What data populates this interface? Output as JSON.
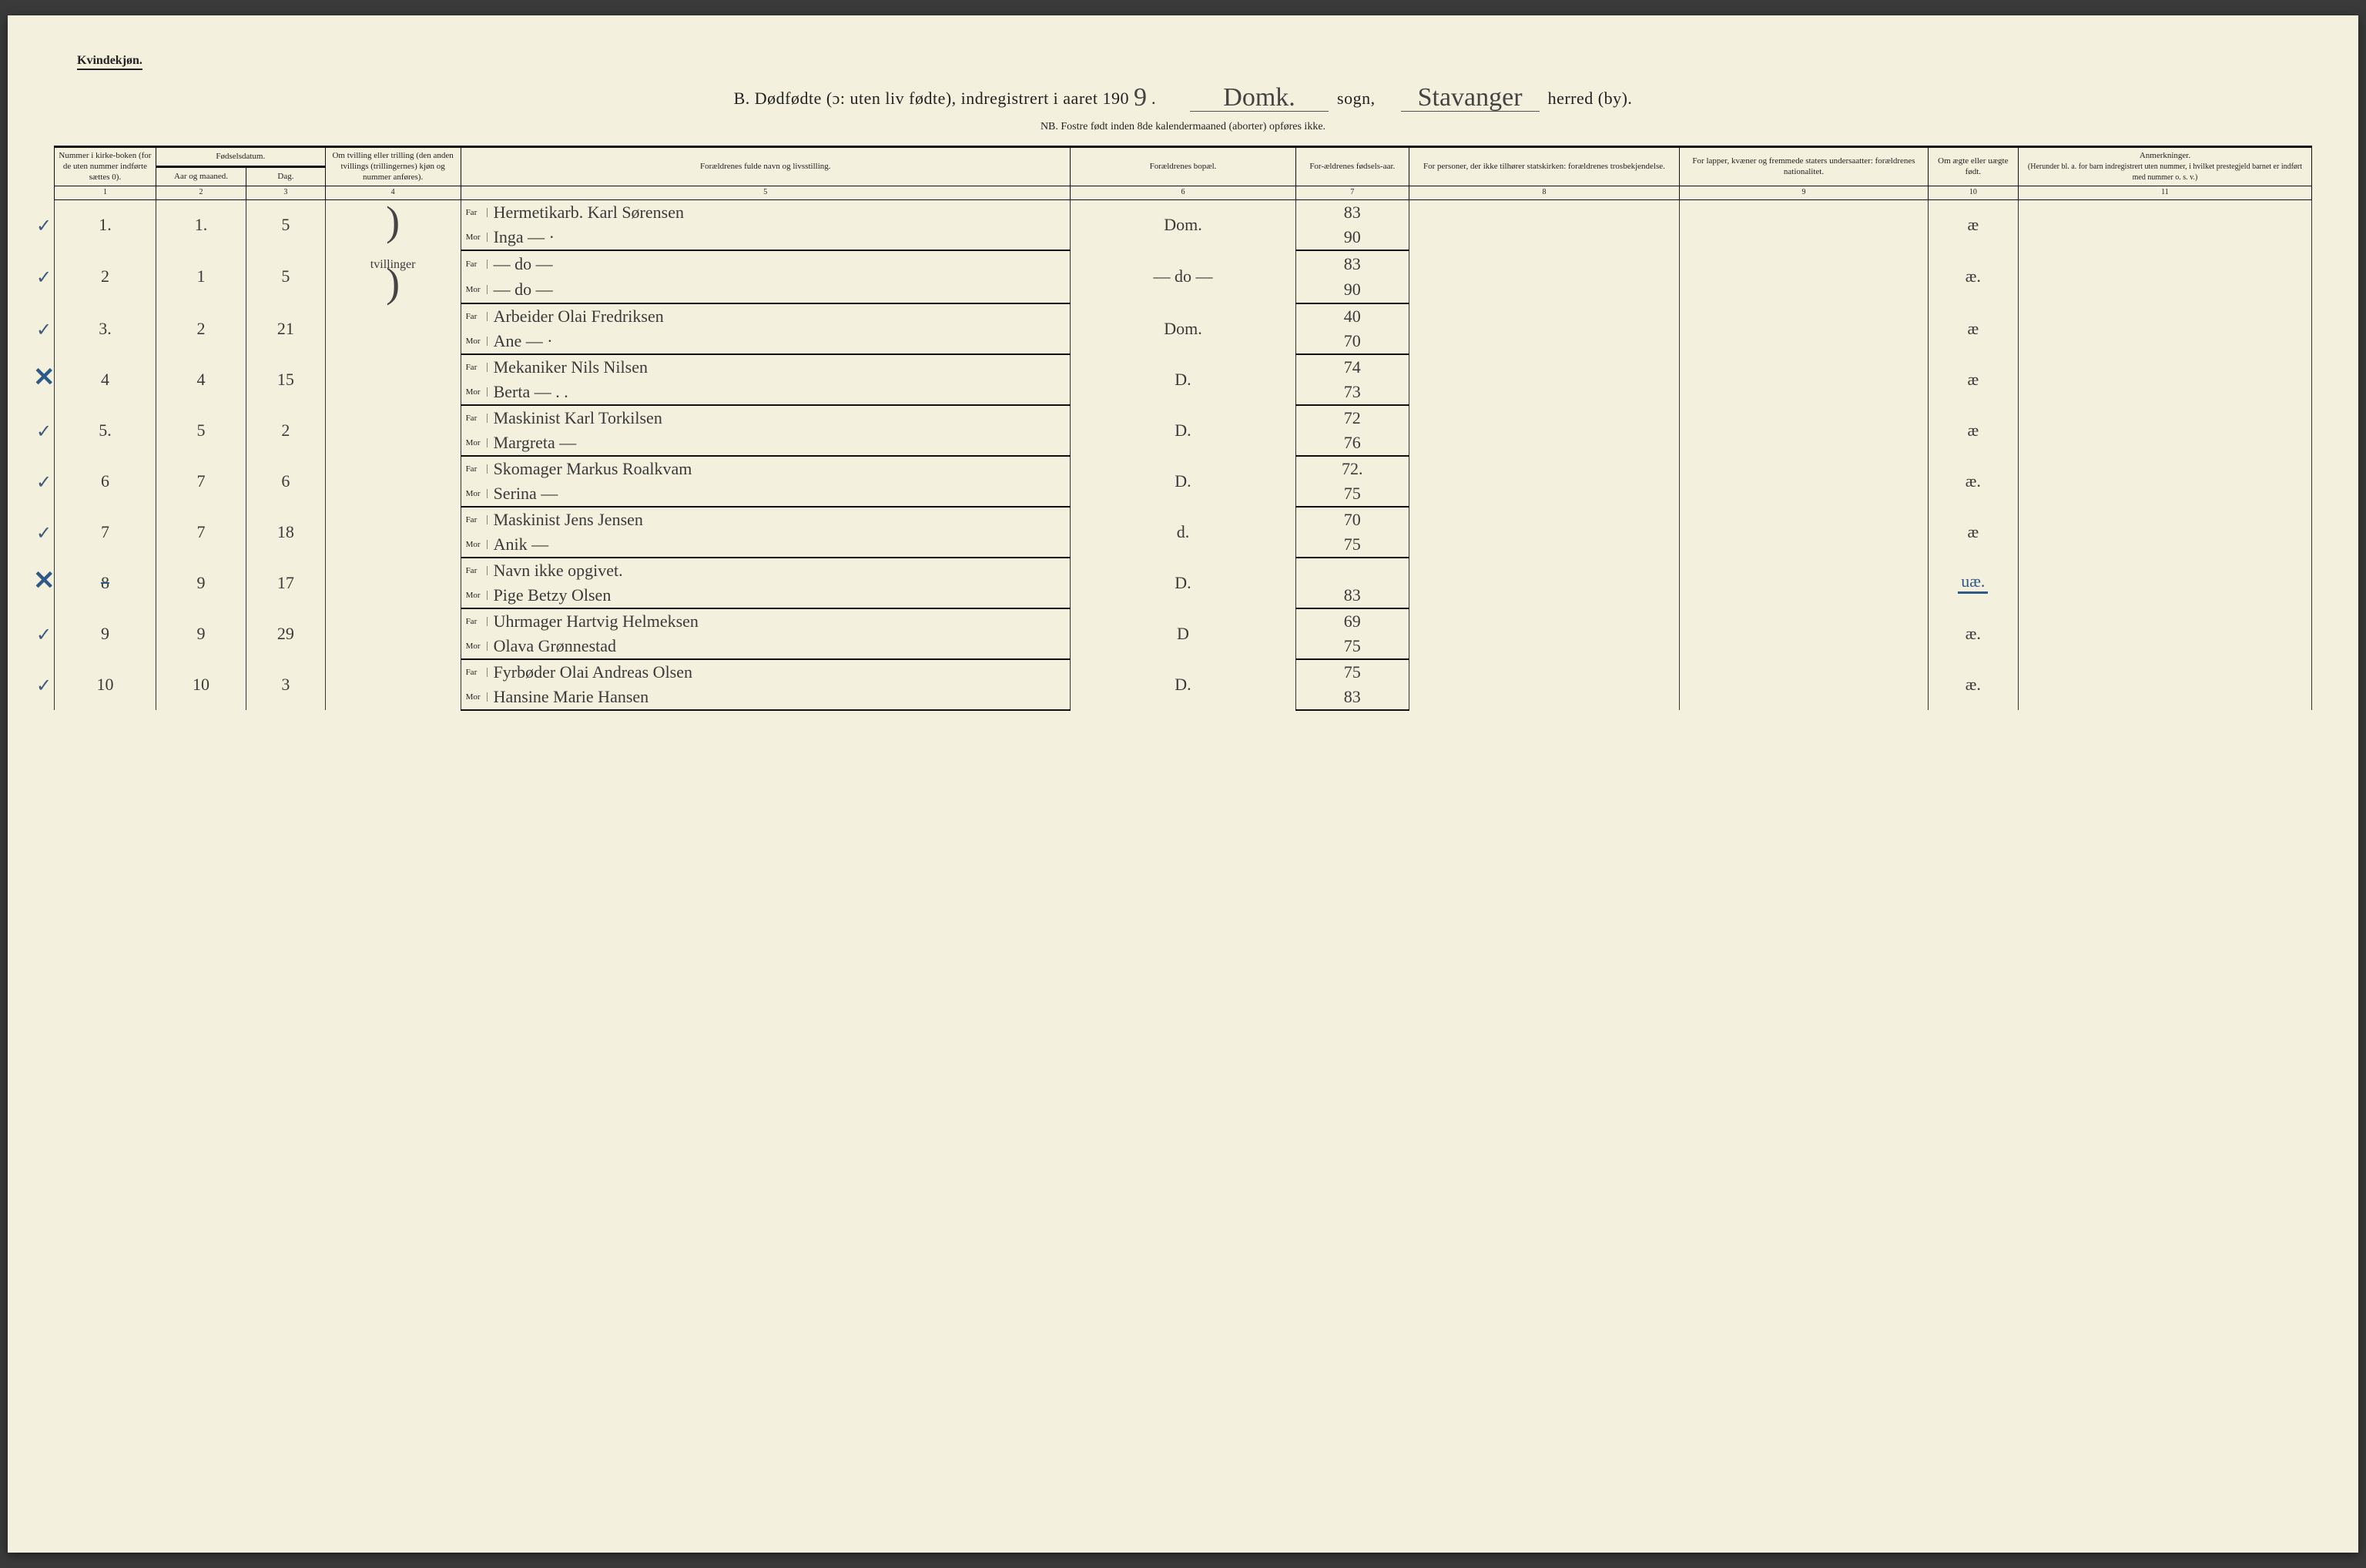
{
  "header": {
    "corner": "Kvindekjøn.",
    "title_prefix": "B.  Dødfødte (ɔ: uten liv fødte), indregistrert i aaret 190",
    "year_suffix": "9",
    "sogn_fill": "Domk.",
    "sogn_label": "sogn,",
    "herred_fill": "Stavanger",
    "herred_label": "herred (by).",
    "subtitle": "NB.  Fostre født inden 8de kalendermaaned (aborter) opføres ikke."
  },
  "columns": {
    "c1": "Nummer i kirke-boken (for de uten nummer indførte sættes 0).",
    "c2_group": "Fødselsdatum.",
    "c2a": "Aar og maaned.",
    "c2b": "Dag.",
    "c4": "Om tvilling eller trilling (den anden tvillings (trillingernes) kjøn og nummer anføres).",
    "c5": "Forældrenes fulde navn og livsstilling.",
    "c6": "Forældrenes bopæl.",
    "c7": "For-ældrenes fødsels-aar.",
    "c8": "For personer, der ikke tilhører statskirken: forældrenes trosbekjendelse.",
    "c9": "For lapper, kvæner og fremmede staters undersaatter: forældrenes nationalitet.",
    "c10": "Om ægte eller uægte født.",
    "c11": "Anmerkninger.",
    "c11_sub": "(Herunder bl. a. for barn indregistrert uten nummer, i hvilket prestegjeld barnet er indført med nummer o. s. v.)",
    "nums": [
      "1",
      "2",
      "3",
      "4",
      "5",
      "6",
      "7",
      "8",
      "9",
      "10",
      "11"
    ],
    "far": "Far",
    "mor": "Mor"
  },
  "rows": [
    {
      "mark": "check",
      "idx": "1.",
      "mon": "1.",
      "day": "5",
      "twin": "",
      "far": "Hermetikarb. Karl Sørensen",
      "mor": "Inga   —  ·",
      "bopael": "Dom.",
      "far_year": "83",
      "mor_year": "90",
      "col10": "æ",
      "brace_twin": true
    },
    {
      "mark": "check",
      "idx": "2",
      "mon": "1",
      "day": "5",
      "twin": "tvillinger",
      "far": "—    do   —",
      "mor": "—    do   —",
      "bopael": "— do —",
      "far_year": "83",
      "mor_year": "90",
      "col10": "æ.",
      "brace_twin": true
    },
    {
      "mark": "check",
      "idx": "3.",
      "mon": "2",
      "day": "21",
      "twin": "",
      "far": "Arbeider Olai Fredriksen",
      "mor": "Ane   —  ·",
      "bopael": "Dom.",
      "far_year": "40",
      "mor_year": "70",
      "col10": "æ"
    },
    {
      "mark": "cross",
      "idx": "4",
      "mon": "4",
      "day": "15",
      "twin": "",
      "far": "Mekaniker Nils Nilsen",
      "mor": "Berta   —  . .",
      "bopael": "D.",
      "far_year": "74",
      "mor_year": "73",
      "col10": "æ"
    },
    {
      "mark": "check",
      "idx": "5.",
      "mon": "5",
      "day": "2",
      "twin": "",
      "far": "Maskinist Karl Torkilsen",
      "mor": "Margreta   —",
      "bopael": "D.",
      "far_year": "72",
      "mor_year": "76",
      "col10": "æ"
    },
    {
      "mark": "check",
      "idx": "6",
      "mon": "7",
      "day": "6",
      "twin": "",
      "far": "Skomager Markus Roalkvam",
      "mor": "Serina   —",
      "bopael": "D.",
      "far_year": "72.",
      "mor_year": "75",
      "col10": "æ."
    },
    {
      "mark": "check",
      "idx": "7",
      "mon": "7",
      "day": "18",
      "twin": "",
      "far": "Maskinist Jens Jensen",
      "mor": "Anik   —",
      "bopael": "d.",
      "far_year": "70",
      "mor_year": "75",
      "col10": "æ"
    },
    {
      "mark": "cross",
      "idx": "8",
      "mon": "9",
      "day": "17",
      "twin": "",
      "far": "Navn ikke opgivet.",
      "mor": "Pige Betzy Olsen",
      "bopael": "D.",
      "far_year": "",
      "mor_year": "83",
      "col10": "uæ.",
      "col10_blue": true,
      "idx_strike": true
    },
    {
      "mark": "check",
      "idx": "9",
      "mon": "9",
      "day": "29",
      "twin": "",
      "far": "Uhrmager Hartvig Helmeksen",
      "mor": "Olava Grønnestad",
      "bopael": "D",
      "far_year": "69",
      "mor_year": "75",
      "col10": "æ."
    },
    {
      "mark": "check",
      "idx": "10",
      "mon": "10",
      "day": "3",
      "twin": "",
      "far": "Fyrbøder Olai Andreas Olsen",
      "mor": "Hansine Marie Hansen",
      "bopael": "D.",
      "far_year": "75",
      "mor_year": "83",
      "col10": "æ."
    }
  ],
  "style": {
    "paper_bg": "#f3f0dd",
    "ink": "#222222",
    "script_ink": "#3a3a3a",
    "blue_ink": "#2e5a8a",
    "rule_thick": "#111111",
    "rule_thin": "#333333"
  }
}
